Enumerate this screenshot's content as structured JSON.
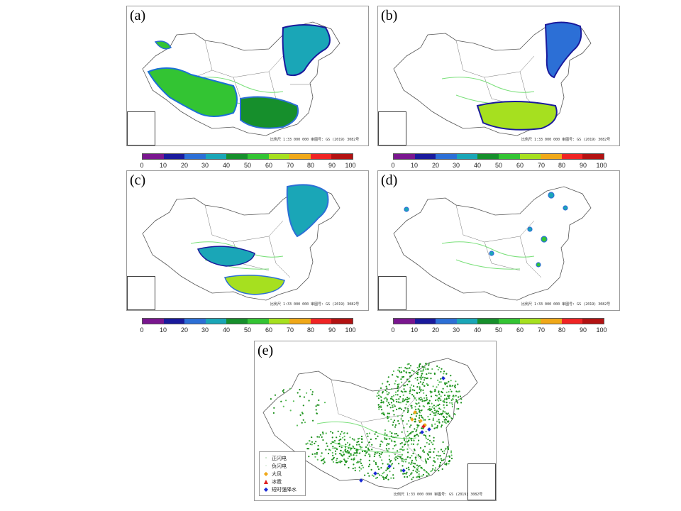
{
  "panels": [
    {
      "label": "(a)",
      "scale_note": "比例尺 1:33 000 000   审图号: GS (2019) 3082号"
    },
    {
      "label": "(b)",
      "scale_note": "比例尺 1:33 000 000   审图号: GS (2019) 3082号"
    },
    {
      "label": "(c)",
      "scale_note": "比例尺 1:33 000 000   审图号: GS (2019) 3082号"
    },
    {
      "label": "(d)",
      "scale_note": "比例尺 1:33 000 000   审图号: GS (2019) 3082号"
    },
    {
      "label": "(e)",
      "scale_note": "比例尺 1:33 000 000 审图号: GS (2019) 3082号"
    }
  ],
  "colorbar": {
    "ticks": [
      "0",
      "10",
      "20",
      "30",
      "40",
      "50",
      "60",
      "70",
      "80",
      "90",
      "100"
    ],
    "colors": [
      "#7a168f",
      "#1a1a9c",
      "#2c6fd6",
      "#1aa6b7",
      "#168f2c",
      "#33c433",
      "#a6e01f",
      "#f0a818",
      "#f02424",
      "#b31212"
    ]
  },
  "legend_e": [
    {
      "label": "正闪电",
      "symbol": "·",
      "color": "#1a8f1a"
    },
    {
      "label": "负闪电",
      "symbol": "·",
      "color": "#7ac47a"
    },
    {
      "label": "大风",
      "symbol": "◆",
      "color": "#f0a818"
    },
    {
      "label": "冰雹",
      "symbol": "▲",
      "color": "#e02020"
    },
    {
      "label": "短时强降水",
      "symbol": "◆",
      "color": "#1a2ad6"
    }
  ],
  "map_colors": {
    "outline": "#555555",
    "rivers": "#7be07b",
    "high": "#1a1a9c",
    "mid": "#2c6fd6",
    "teal": "#1aa6b7",
    "green": "#33c433",
    "darkgreen": "#168f2c",
    "yellowgreen": "#a6e01f",
    "lightning_pos": "#1a8f1a",
    "lightning_neg": "#5cbf5c"
  }
}
